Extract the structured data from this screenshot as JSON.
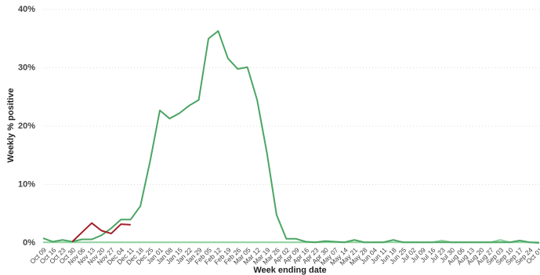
{
  "chart_data": {
    "type": "line",
    "y_label": "Weekly % positive",
    "x_label": "Week ending date",
    "categories": [
      "Oct 09",
      "Oct 16",
      "Oct 23",
      "Oct 30",
      "Nov 06",
      "Nov 13",
      "Nov 20",
      "Nov 27",
      "Dec 04",
      "Dec 11",
      "Dec 18",
      "Dec 25",
      "Jan 01",
      "Jan 08",
      "Jan 15",
      "Jan 22",
      "Jan 29",
      "Feb 05",
      "Feb 12",
      "Feb 19",
      "Feb 26",
      "Mar 05",
      "Mar 12",
      "Mar 19",
      "Mar 26",
      "Apr 02",
      "Apr 09",
      "Apr 16",
      "Apr 23",
      "Apr 30",
      "May 07",
      "May 14",
      "May 21",
      "May 28",
      "Jun 04",
      "Jun 11",
      "Jun 18",
      "Jun 25",
      "Jul 02",
      "Jul 09",
      "Jul 16",
      "Jul 23",
      "Jul 30",
      "Aug 06",
      "Aug 13",
      "Aug 20",
      "Aug 27",
      "Sep 03",
      "Sep 10",
      "Sep 17",
      "Sep 24",
      "Oct 01"
    ],
    "series": [
      {
        "color": "#8fd19e",
        "values": [
          0.1,
          0.1,
          0.1,
          0.1,
          0.1,
          0.1,
          0.1,
          0.1,
          0.1,
          0.1,
          0.1,
          0.1,
          0.1,
          0.1,
          0.1,
          0.1,
          0.1,
          0.1,
          0.1,
          0.1,
          0.1,
          0.1,
          0.1,
          0.1,
          0.1,
          0.1,
          0.1,
          0.1,
          0.1,
          0.1,
          0.1,
          0.1,
          0.1,
          0.1,
          0.1,
          0.1,
          0.1,
          0.1,
          0.1,
          0.1,
          0.1,
          0.4,
          0.1,
          0.1,
          0.1,
          0.1,
          0.1,
          0.5,
          0.1,
          0.1,
          0.1,
          0.1
        ]
      },
      {
        "color": "#4aa564",
        "values": [
          0.8,
          0.2,
          0.5,
          0.2,
          0.6,
          0.6,
          1.3,
          2.5,
          4.0,
          4.0,
          6.3,
          14.0,
          22.7,
          21.3,
          22.2,
          23.5,
          24.5,
          35.0,
          36.3,
          31.6,
          29.8,
          30.1,
          24.5,
          15.5,
          4.8,
          0.7,
          0.7,
          0.2,
          0.1,
          0.3,
          0.2,
          0.1,
          0.5,
          0.1,
          0.1,
          0.1,
          0.5,
          0.1,
          0.1,
          0.1,
          0.1,
          0.1,
          0.1,
          0.1,
          0.1,
          0.1,
          0.1,
          0.1,
          0.1,
          0.4,
          0.1,
          0.0
        ]
      },
      {
        "color": "#a3202a",
        "values": [
          null,
          null,
          null,
          0.2,
          1.8,
          3.4,
          2.1,
          1.6,
          3.2,
          3.1,
          null,
          null,
          null,
          null,
          null,
          null,
          null,
          null,
          null,
          null,
          null,
          null,
          null,
          null,
          null,
          null,
          null,
          null,
          null,
          null,
          null,
          null,
          null,
          null,
          null,
          null,
          null,
          null,
          null,
          null,
          null,
          null,
          null,
          null,
          null,
          null,
          null,
          null,
          null,
          null,
          null,
          null
        ]
      }
    ],
    "ylim": [
      0,
      40
    ],
    "yticks": [
      {
        "value": 0,
        "label": "0%"
      },
      {
        "value": 10,
        "label": "10%"
      },
      {
        "value": 20,
        "label": "20%"
      },
      {
        "value": 30,
        "label": "30%"
      },
      {
        "value": 40,
        "label": "40%"
      }
    ],
    "grid": true
  }
}
